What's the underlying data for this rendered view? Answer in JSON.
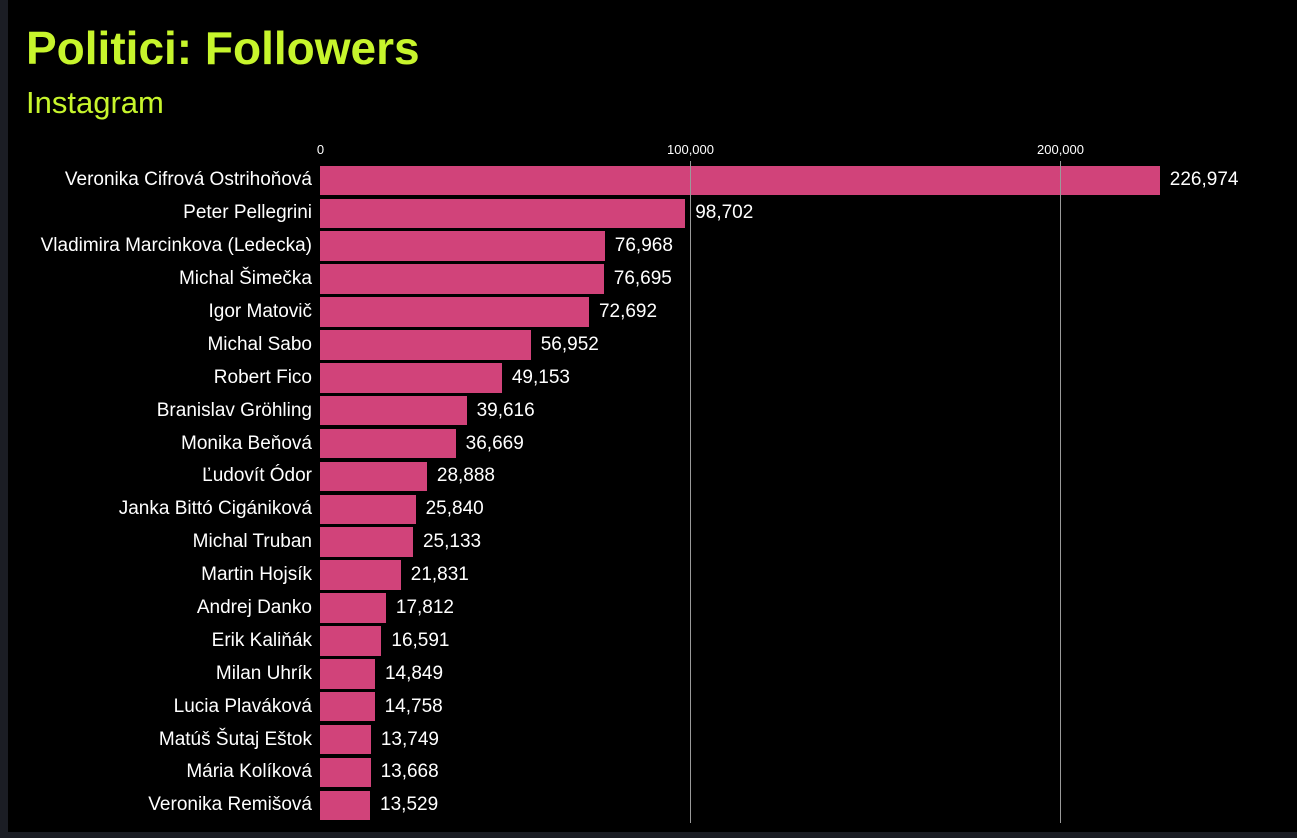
{
  "header": {
    "title": "Politici: Followers",
    "subtitle": "Instagram"
  },
  "chart_data": {
    "type": "bar",
    "orientation": "horizontal",
    "title": "Politici: Followers",
    "subtitle": "Instagram",
    "categories": [
      "Veronika Cifrová Ostrihoňová",
      "Peter Pellegrini",
      "Vladimira Marcinkova (Ledecka)",
      "Michal Šimečka",
      "Igor Matovič",
      "Michal Sabo",
      "Robert Fico",
      "Branislav Gröhling",
      "Monika Beňová",
      "Ľudovít Ódor",
      "Janka Bittó Cigániková",
      "Michal Truban",
      "Martin Hojsík",
      "Andrej Danko",
      "Erik Kaliňák",
      "Milan Uhrík",
      "Lucia Plaváková",
      "Matúš Šutaj Eštok",
      "Mária Kolíková",
      "Veronika Remišová"
    ],
    "values": [
      226974,
      98702,
      76968,
      76695,
      72692,
      56952,
      49153,
      39616,
      36669,
      28888,
      25840,
      25133,
      21831,
      17812,
      16591,
      14849,
      14758,
      13749,
      13668,
      13529
    ],
    "value_labels": [
      "226,974",
      "98,702",
      "76,968",
      "76,695",
      "72,692",
      "56,952",
      "49,153",
      "39,616",
      "36,669",
      "28,888",
      "25,840",
      "25,133",
      "21,831",
      "17,812",
      "16,591",
      "14,849",
      "14,758",
      "13,749",
      "13,668",
      "13,529"
    ],
    "x_axis": {
      "ticks": [
        0,
        100000,
        200000
      ],
      "tick_labels": [
        "0",
        "100,000",
        "200,000"
      ],
      "min": 0,
      "max": 240000
    },
    "grid": "vertical-gridlines-at-ticks",
    "legend": "none",
    "colors": {
      "background": "#000000",
      "bar": "#d1437a",
      "title_text": "#c7f52c",
      "subtitle_text": "#c7f52c",
      "label_text": "#ffffff",
      "tick_text": "#ffffff",
      "gridline": "#9a9a9a",
      "window_edge": "#1b1d24"
    }
  }
}
